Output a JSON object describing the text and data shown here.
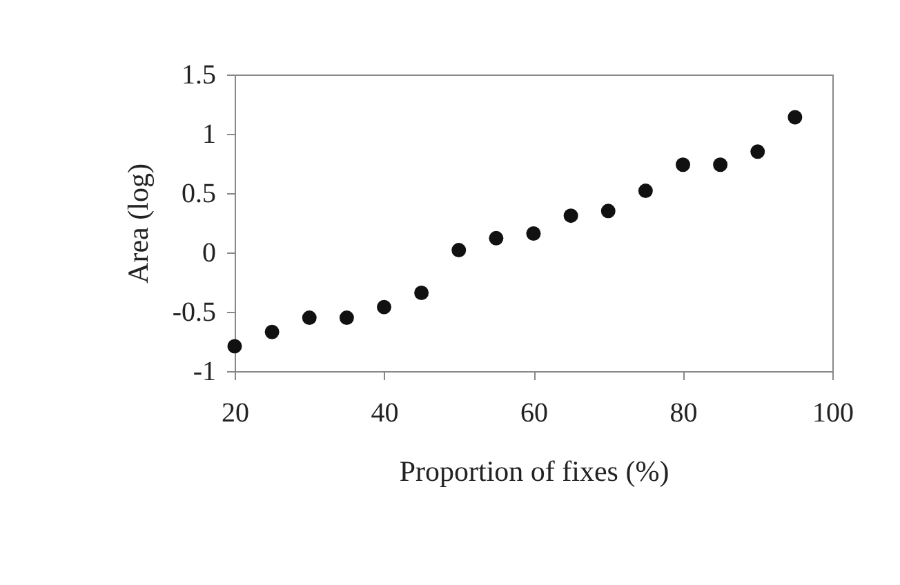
{
  "chart_data": {
    "type": "scatter",
    "xlabel": "Proportion of fixes (%)",
    "ylabel": "Area (log)",
    "x": [
      20,
      25,
      30,
      35,
      40,
      45,
      50,
      55,
      60,
      65,
      70,
      75,
      80,
      85,
      90,
      95
    ],
    "series": [
      {
        "color": "#111111",
        "values": [
          -0.79,
          -0.67,
          -0.55,
          -0.55,
          -0.46,
          -0.34,
          0.02,
          0.12,
          0.16,
          0.31,
          0.35,
          0.52,
          0.74,
          0.74,
          0.85,
          1.14
        ]
      }
    ],
    "xlim": [
      20,
      100
    ],
    "xticks": [
      20,
      40,
      60,
      80,
      100
    ],
    "ylim": [
      -1,
      1.5
    ],
    "yticks": [
      -1,
      -0.5,
      0,
      0.5,
      1,
      1.5
    ],
    "grid": false,
    "legend": false,
    "marker": "circle"
  }
}
